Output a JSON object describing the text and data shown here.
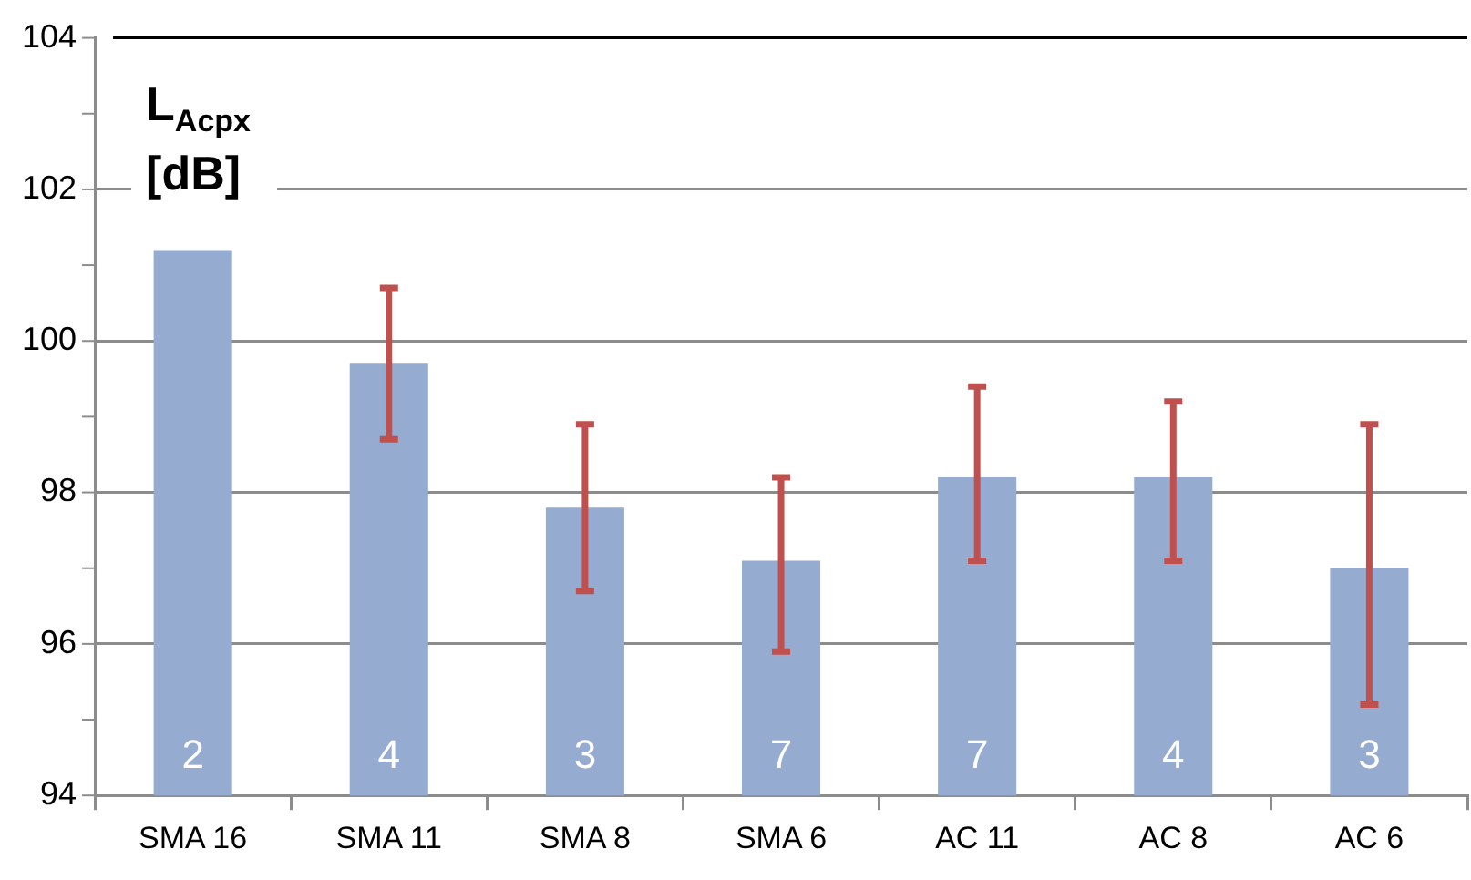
{
  "chart_data": {
    "type": "bar",
    "ylabel": "L$_{Acpx}$ [dB]",
    "categories": [
      "SMA 16",
      "SMA 11",
      "SMA 8",
      "SMA 6",
      "AC 11",
      "AC 8",
      "AC 6"
    ],
    "values": [
      101.2,
      99.7,
      97.8,
      97.1,
      98.2,
      98.2,
      97.0
    ],
    "errors": [
      null,
      [
        98.7,
        100.7
      ],
      [
        96.7,
        98.9
      ],
      [
        95.9,
        98.2
      ],
      [
        97.1,
        99.4
      ],
      [
        97.1,
        99.2
      ],
      [
        95.2,
        98.9
      ]
    ],
    "annotations": [
      "2",
      "4",
      "3",
      "7",
      "7",
      "4",
      "3"
    ],
    "color": "#95abd0",
    "ylim": [
      94,
      104
    ],
    "yticks": [
      94,
      {
        "value": 95,
        "label": null
      },
      96,
      {
        "value": 97,
        "label": null
      },
      98,
      {
        "value": 99,
        "label": null
      },
      100,
      {
        "value": 101,
        "label": null
      },
      102,
      {
        "value": 103,
        "label": null
      },
      104
    ],
    "grid": "y"
  }
}
